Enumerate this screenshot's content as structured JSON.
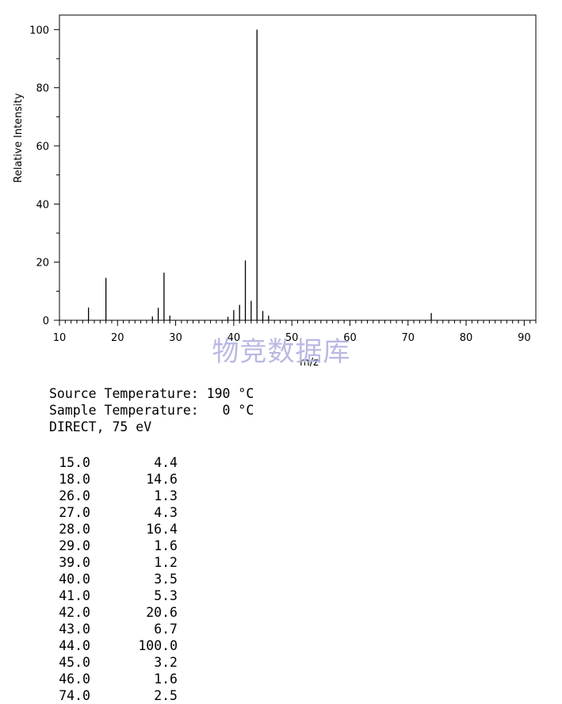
{
  "chart_data": {
    "type": "bar",
    "xlabel": "m/z",
    "ylabel": "Relative Intensity",
    "xlim": [
      10,
      92
    ],
    "ylim": [
      0,
      105
    ],
    "xticks": [
      10,
      20,
      30,
      40,
      50,
      60,
      70,
      80,
      90
    ],
    "yticks": [
      0,
      20,
      40,
      60,
      80,
      100
    ],
    "x": [
      15,
      18,
      26,
      27,
      28,
      29,
      39,
      40,
      41,
      42,
      43,
      44,
      45,
      46,
      74
    ],
    "values": [
      4.4,
      14.6,
      1.3,
      4.3,
      16.4,
      1.6,
      1.2,
      3.5,
      5.3,
      20.6,
      6.7,
      100.0,
      3.2,
      1.6,
      2.5
    ],
    "grid": false
  },
  "watermark": "物竞数据库",
  "info": {
    "line1": "Source Temperature: 190 °C",
    "line2": "Sample Temperature:   0 °C",
    "line3": "DIRECT, 75 eV"
  },
  "peaks": [
    {
      "mz": "15.0",
      "intensity": "4.4"
    },
    {
      "mz": "18.0",
      "intensity": "14.6"
    },
    {
      "mz": "26.0",
      "intensity": "1.3"
    },
    {
      "mz": "27.0",
      "intensity": "4.3"
    },
    {
      "mz": "28.0",
      "intensity": "16.4"
    },
    {
      "mz": "29.0",
      "intensity": "1.6"
    },
    {
      "mz": "39.0",
      "intensity": "1.2"
    },
    {
      "mz": "40.0",
      "intensity": "3.5"
    },
    {
      "mz": "41.0",
      "intensity": "5.3"
    },
    {
      "mz": "42.0",
      "intensity": "20.6"
    },
    {
      "mz": "43.0",
      "intensity": "6.7"
    },
    {
      "mz": "44.0",
      "intensity": "100.0"
    },
    {
      "mz": "45.0",
      "intensity": "3.2"
    },
    {
      "mz": "46.0",
      "intensity": "1.6"
    },
    {
      "mz": "74.0",
      "intensity": "2.5"
    }
  ]
}
